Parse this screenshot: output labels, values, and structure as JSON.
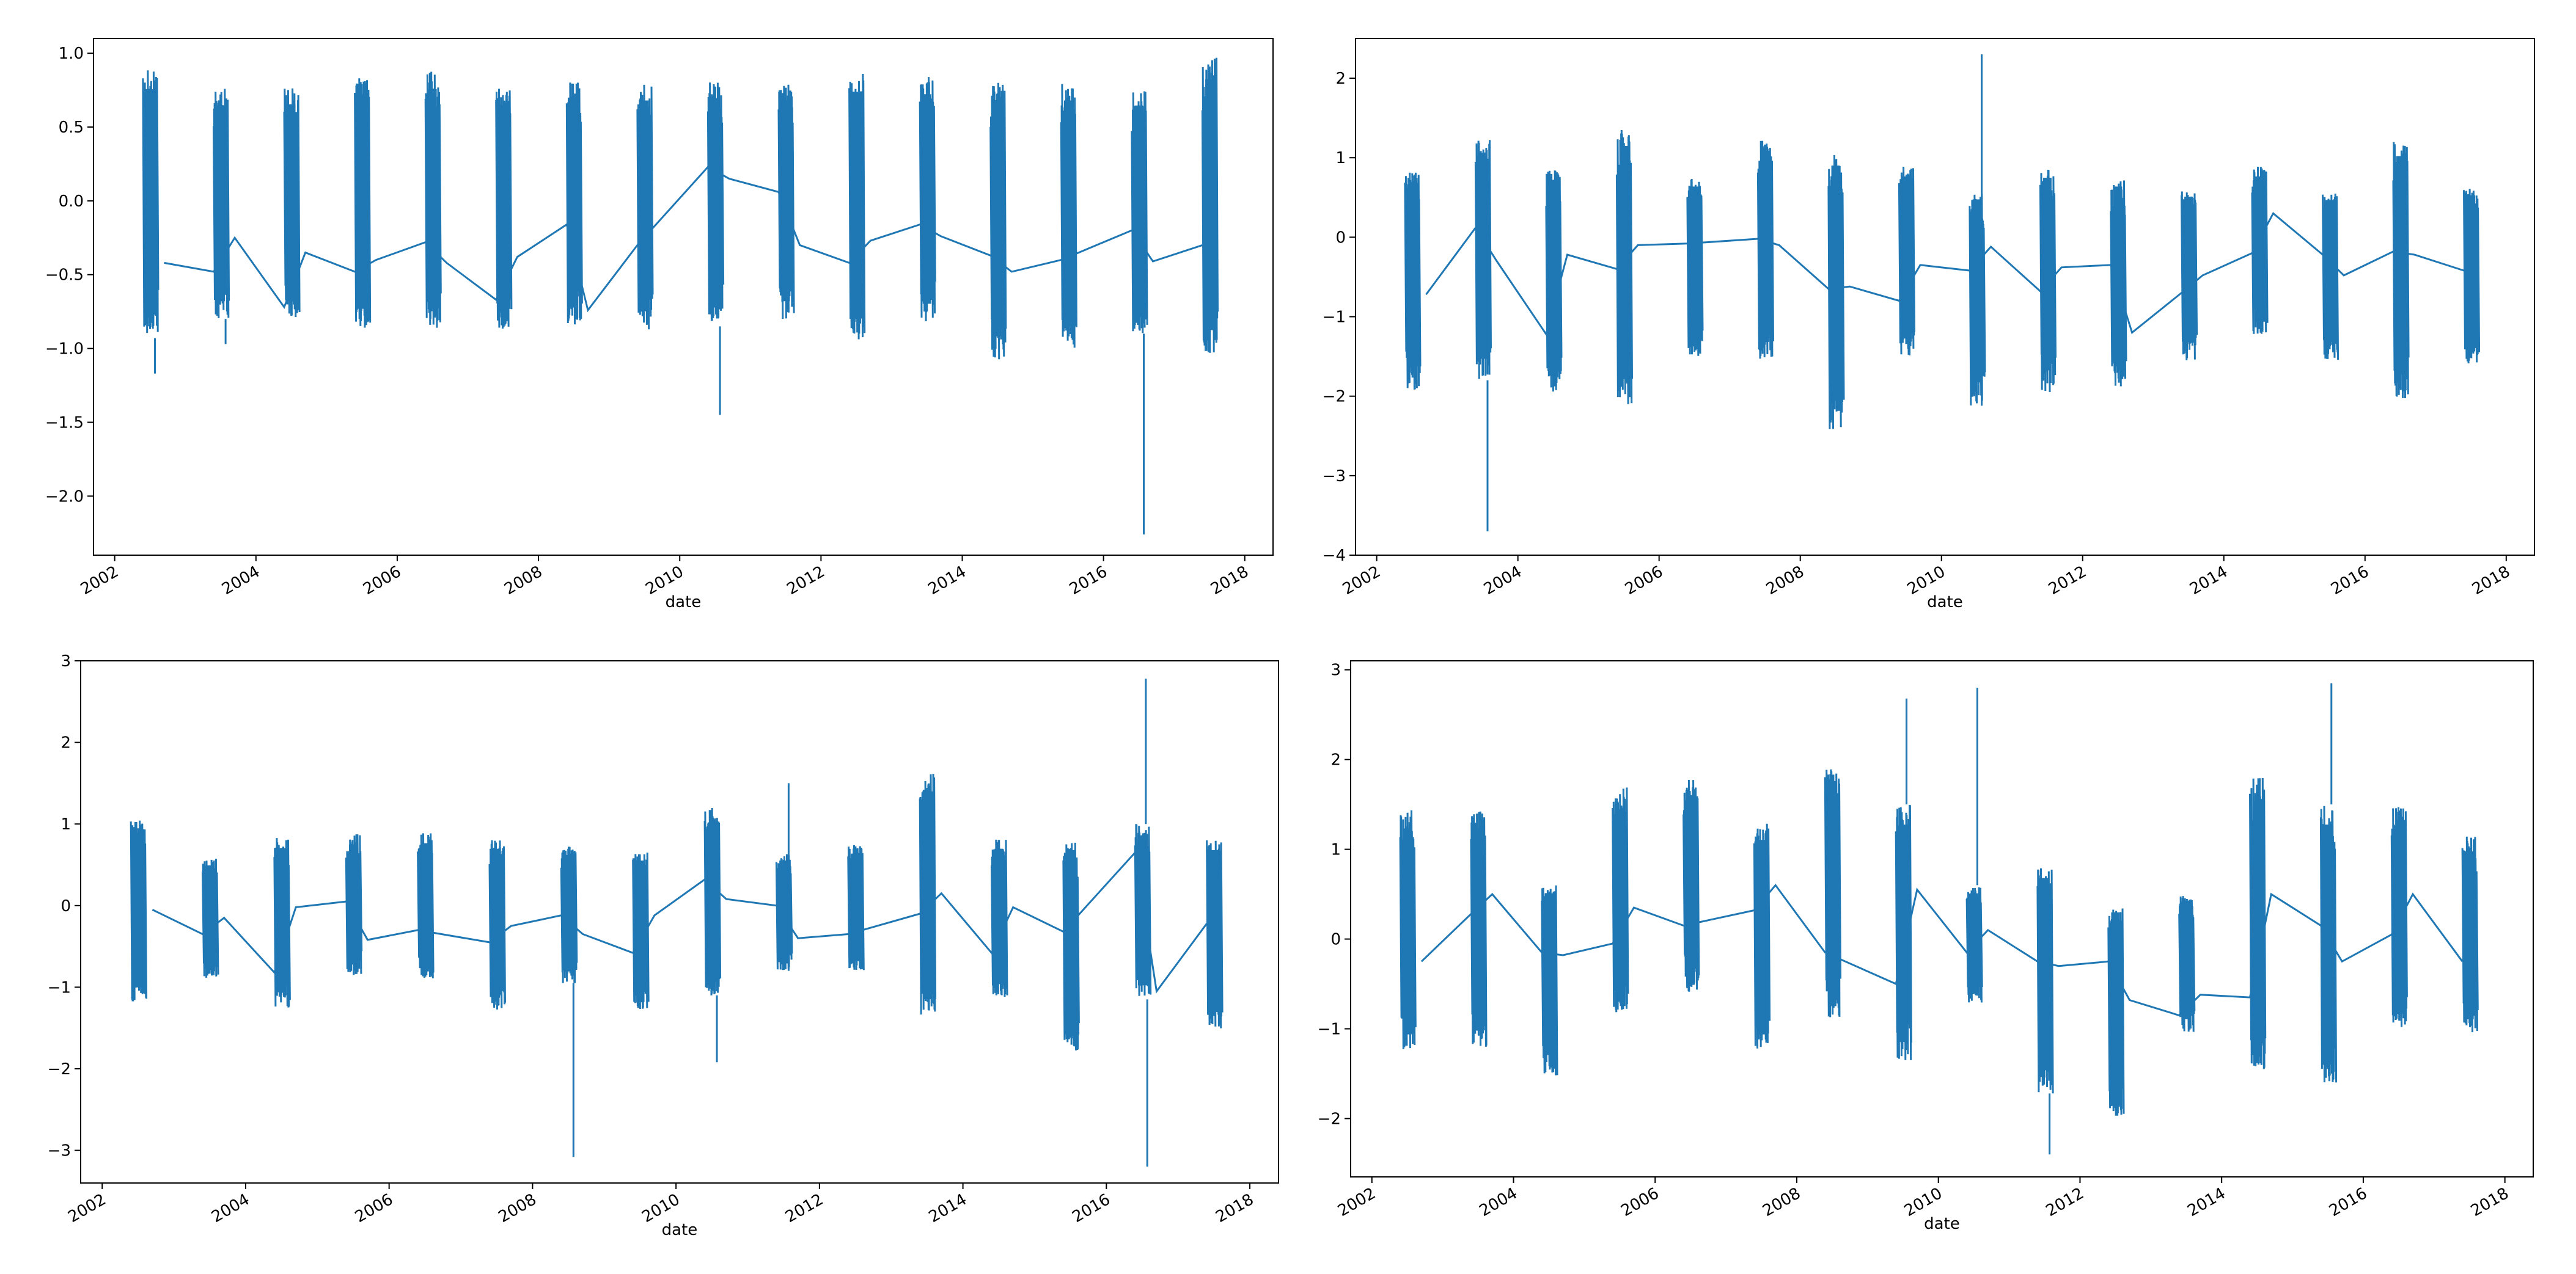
{
  "figure": {
    "line_color": "#1f77b4",
    "background": "#ffffff"
  },
  "chart_data": [
    {
      "type": "line",
      "title": "",
      "xlabel": "date",
      "ylabel": "",
      "grid": false,
      "xlim": [
        2001.7,
        2018.4
      ],
      "ylim": [
        -2.4,
        1.1
      ],
      "x_ticks": [
        2002,
        2004,
        2006,
        2008,
        2010,
        2012,
        2014,
        2016,
        2018
      ],
      "y_ticks": [
        1.0,
        0.5,
        0.0,
        -0.5,
        -1.0,
        -1.5,
        -2.0
      ],
      "y_tick_labels": [
        "1.0",
        "0.5",
        "0.0",
        "−0.5",
        "−1.0",
        "−1.5",
        "−2.0"
      ],
      "bursts": [
        {
          "x": 2002.5,
          "min": -0.93,
          "max": 0.89,
          "spike": -1.17
        },
        {
          "x": 2003.5,
          "min": -0.8,
          "max": 0.76,
          "spike": -0.97
        },
        {
          "x": 2004.5,
          "min": -0.8,
          "max": 0.77
        },
        {
          "x": 2005.5,
          "min": -0.86,
          "max": 0.85
        },
        {
          "x": 2006.5,
          "min": -0.86,
          "max": 0.89
        },
        {
          "x": 2007.5,
          "min": -0.87,
          "max": 0.76
        },
        {
          "x": 2008.5,
          "min": -0.85,
          "max": 0.83
        },
        {
          "x": 2009.5,
          "min": -0.88,
          "max": 0.8
        },
        {
          "x": 2010.5,
          "min": -0.85,
          "max": 0.82,
          "spike": -1.45
        },
        {
          "x": 2011.5,
          "min": -0.8,
          "max": 0.8
        },
        {
          "x": 2012.5,
          "min": -0.94,
          "max": 0.87
        },
        {
          "x": 2013.5,
          "min": -0.82,
          "max": 0.85
        },
        {
          "x": 2014.5,
          "min": -1.08,
          "max": 0.8
        },
        {
          "x": 2015.5,
          "min": -1.0,
          "max": 0.8
        },
        {
          "x": 2016.5,
          "min": -0.9,
          "max": 0.76,
          "spike": -2.26
        },
        {
          "x": 2017.5,
          "min": -1.03,
          "max": 0.97
        }
      ],
      "connectors": [
        [
          2002.7,
          -0.42
        ],
        [
          2003.4,
          -0.48
        ],
        [
          2003.7,
          -0.25
        ],
        [
          2004.4,
          -0.72
        ],
        [
          2004.7,
          -0.35
        ],
        [
          2005.4,
          -0.48
        ],
        [
          2005.7,
          -0.4
        ],
        [
          2006.4,
          -0.28
        ],
        [
          2006.7,
          -0.42
        ],
        [
          2007.4,
          -0.67
        ],
        [
          2007.7,
          -0.38
        ],
        [
          2008.4,
          -0.16
        ],
        [
          2008.7,
          -0.74
        ],
        [
          2009.4,
          -0.3
        ],
        [
          2010.4,
          0.23
        ],
        [
          2010.7,
          0.15
        ],
        [
          2011.4,
          0.06
        ],
        [
          2011.7,
          -0.3
        ],
        [
          2012.4,
          -0.42
        ],
        [
          2012.7,
          -0.27
        ],
        [
          2013.4,
          -0.16
        ],
        [
          2013.7,
          -0.24
        ],
        [
          2014.4,
          -0.37
        ],
        [
          2014.7,
          -0.48
        ],
        [
          2015.4,
          -0.4
        ],
        [
          2016.4,
          -0.2
        ],
        [
          2016.7,
          -0.41
        ],
        [
          2017.4,
          -0.3
        ]
      ]
    },
    {
      "type": "line",
      "title": "",
      "xlabel": "date",
      "ylabel": "",
      "grid": false,
      "xlim": [
        2001.7,
        2018.4
      ],
      "ylim": [
        -4.0,
        2.5
      ],
      "x_ticks": [
        2002,
        2004,
        2006,
        2008,
        2010,
        2012,
        2014,
        2016,
        2018
      ],
      "y_ticks": [
        2,
        1,
        0,
        -1,
        -2,
        -3,
        -4
      ],
      "y_tick_labels": [
        "2",
        "1",
        "0",
        "−1",
        "−2",
        "−3",
        "−4"
      ],
      "bursts": [
        {
          "x": 2002.5,
          "min": -1.93,
          "max": 0.82
        },
        {
          "x": 2003.5,
          "min": -1.8,
          "max": 1.25,
          "spike": -3.7
        },
        {
          "x": 2004.5,
          "min": -1.98,
          "max": 0.85
        },
        {
          "x": 2005.5,
          "min": -2.1,
          "max": 1.35
        },
        {
          "x": 2006.5,
          "min": -1.5,
          "max": 0.75
        },
        {
          "x": 2007.5,
          "min": -1.55,
          "max": 1.22
        },
        {
          "x": 2008.5,
          "min": -2.42,
          "max": 1.06
        },
        {
          "x": 2009.5,
          "min": -1.5,
          "max": 0.9
        },
        {
          "x": 2010.5,
          "min": -2.12,
          "max": 0.56,
          "spike": 2.3
        },
        {
          "x": 2011.5,
          "min": -1.97,
          "max": 0.88
        },
        {
          "x": 2012.5,
          "min": -1.88,
          "max": 0.75
        },
        {
          "x": 2013.5,
          "min": -1.55,
          "max": 0.6
        },
        {
          "x": 2014.5,
          "min": -1.22,
          "max": 0.9
        },
        {
          "x": 2015.5,
          "min": -1.55,
          "max": 0.55
        },
        {
          "x": 2016.5,
          "min": -2.03,
          "max": 1.2
        },
        {
          "x": 2017.5,
          "min": -1.6,
          "max": 0.62
        }
      ],
      "connectors": [
        [
          2002.7,
          -0.72
        ],
        [
          2003.4,
          0.12
        ],
        [
          2003.7,
          -0.3
        ],
        [
          2004.4,
          -1.22
        ],
        [
          2004.7,
          -0.22
        ],
        [
          2005.4,
          -0.4
        ],
        [
          2005.7,
          -0.1
        ],
        [
          2006.4,
          -0.08
        ],
        [
          2007.4,
          -0.02
        ],
        [
          2007.7,
          -0.1
        ],
        [
          2008.4,
          -0.65
        ],
        [
          2008.7,
          -0.62
        ],
        [
          2009.4,
          -0.8
        ],
        [
          2009.7,
          -0.35
        ],
        [
          2010.4,
          -0.42
        ],
        [
          2010.7,
          -0.12
        ],
        [
          2011.4,
          -0.68
        ],
        [
          2011.7,
          -0.38
        ],
        [
          2012.4,
          -0.35
        ],
        [
          2012.7,
          -1.2
        ],
        [
          2013.4,
          -0.7
        ],
        [
          2013.7,
          -0.48
        ],
        [
          2014.4,
          -0.2
        ],
        [
          2014.7,
          0.3
        ],
        [
          2015.4,
          -0.22
        ],
        [
          2015.7,
          -0.48
        ],
        [
          2016.4,
          -0.18
        ],
        [
          2016.7,
          -0.22
        ],
        [
          2017.4,
          -0.42
        ]
      ]
    },
    {
      "type": "line",
      "title": "",
      "xlabel": "date",
      "ylabel": "",
      "grid": false,
      "xlim": [
        2001.7,
        2018.4
      ],
      "ylim": [
        -3.4,
        3.0
      ],
      "x_ticks": [
        2002,
        2004,
        2006,
        2008,
        2010,
        2012,
        2014,
        2016,
        2018
      ],
      "y_ticks": [
        3,
        2,
        1,
        0,
        -1,
        -2,
        -3
      ],
      "y_tick_labels": [
        "3",
        "2",
        "1",
        "0",
        "−1",
        "−2",
        "−3"
      ],
      "bursts": [
        {
          "x": 2002.5,
          "min": -1.18,
          "max": 1.05
        },
        {
          "x": 2003.5,
          "min": -0.93,
          "max": 0.58
        },
        {
          "x": 2004.5,
          "min": -1.25,
          "max": 0.83
        },
        {
          "x": 2005.5,
          "min": -0.85,
          "max": 0.88
        },
        {
          "x": 2006.5,
          "min": -0.9,
          "max": 0.9
        },
        {
          "x": 2007.5,
          "min": -1.28,
          "max": 0.82
        },
        {
          "x": 2008.5,
          "min": -0.95,
          "max": 0.73,
          "spike": -3.08
        },
        {
          "x": 2009.5,
          "min": -1.3,
          "max": 0.65
        },
        {
          "x": 2010.5,
          "min": -1.1,
          "max": 1.2,
          "spike": -1.92
        },
        {
          "x": 2011.5,
          "min": -0.8,
          "max": 0.65,
          "spike": 1.5
        },
        {
          "x": 2012.5,
          "min": -0.8,
          "max": 0.75
        },
        {
          "x": 2013.5,
          "min": -1.35,
          "max": 1.67
        },
        {
          "x": 2014.5,
          "min": -1.12,
          "max": 0.82
        },
        {
          "x": 2015.5,
          "min": -1.8,
          "max": 0.8
        },
        {
          "x": 2016.5,
          "min": -1.15,
          "max": 1.0,
          "spike_hi": 2.78,
          "spike": -3.2
        },
        {
          "x": 2017.5,
          "min": -1.53,
          "max": 0.8
        }
      ],
      "connectors": [
        [
          2002.7,
          -0.05
        ],
        [
          2003.4,
          -0.35
        ],
        [
          2003.7,
          -0.15
        ],
        [
          2004.4,
          -0.82
        ],
        [
          2004.7,
          -0.02
        ],
        [
          2005.4,
          0.05
        ],
        [
          2005.7,
          -0.42
        ],
        [
          2006.4,
          -0.3
        ],
        [
          2007.4,
          -0.45
        ],
        [
          2007.7,
          -0.25
        ],
        [
          2008.4,
          -0.12
        ],
        [
          2008.7,
          -0.35
        ],
        [
          2009.4,
          -0.58
        ],
        [
          2009.7,
          -0.12
        ],
        [
          2010.4,
          0.32
        ],
        [
          2010.7,
          0.08
        ],
        [
          2011.4,
          0.0
        ],
        [
          2011.7,
          -0.4
        ],
        [
          2012.4,
          -0.35
        ],
        [
          2013.4,
          -0.1
        ],
        [
          2013.7,
          0.15
        ],
        [
          2014.4,
          -0.58
        ],
        [
          2014.7,
          -0.02
        ],
        [
          2015.4,
          -0.32
        ],
        [
          2016.4,
          0.65
        ],
        [
          2016.7,
          -1.05
        ],
        [
          2017.4,
          -0.22
        ]
      ]
    },
    {
      "type": "line",
      "title": "",
      "xlabel": "date",
      "ylabel": "",
      "grid": false,
      "xlim": [
        2001.7,
        2018.4
      ],
      "ylim": [
        -2.65,
        3.1
      ],
      "x_ticks": [
        2002,
        2004,
        2006,
        2008,
        2010,
        2012,
        2014,
        2016,
        2018
      ],
      "y_ticks": [
        3,
        2,
        1,
        0,
        -1,
        -2
      ],
      "y_tick_labels": [
        "3",
        "2",
        "1",
        "0",
        "−1",
        "−2"
      ],
      "bursts": [
        {
          "x": 2002.5,
          "min": -1.25,
          "max": 1.45
        },
        {
          "x": 2003.5,
          "min": -1.2,
          "max": 1.45
        },
        {
          "x": 2004.5,
          "min": -1.52,
          "max": 0.6
        },
        {
          "x": 2005.5,
          "min": -0.82,
          "max": 1.7
        },
        {
          "x": 2006.5,
          "min": -0.6,
          "max": 1.78
        },
        {
          "x": 2007.5,
          "min": -1.25,
          "max": 1.3
        },
        {
          "x": 2008.5,
          "min": -0.88,
          "max": 1.9
        },
        {
          "x": 2009.5,
          "min": -1.35,
          "max": 1.5,
          "spike_hi": 2.68
        },
        {
          "x": 2010.5,
          "min": -0.72,
          "max": 0.6,
          "spike_hi": 2.8
        },
        {
          "x": 2011.5,
          "min": -1.72,
          "max": 0.8,
          "spike": -2.4
        },
        {
          "x": 2012.5,
          "min": -2.0,
          "max": 0.35
        },
        {
          "x": 2013.5,
          "min": -1.05,
          "max": 0.5
        },
        {
          "x": 2014.5,
          "min": -1.5,
          "max": 1.8
        },
        {
          "x": 2015.5,
          "min": -1.6,
          "max": 1.5,
          "spike_hi": 2.85
        },
        {
          "x": 2016.5,
          "min": -0.98,
          "max": 1.48
        },
        {
          "x": 2017.5,
          "min": -1.05,
          "max": 1.15
        }
      ],
      "connectors": [
        [
          2002.7,
          -0.25
        ],
        [
          2003.4,
          0.28
        ],
        [
          2003.7,
          0.5
        ],
        [
          2004.4,
          -0.15
        ],
        [
          2004.7,
          -0.18
        ],
        [
          2005.4,
          -0.05
        ],
        [
          2005.7,
          0.35
        ],
        [
          2006.4,
          0.15
        ],
        [
          2007.4,
          0.32
        ],
        [
          2007.7,
          0.6
        ],
        [
          2008.4,
          -0.15
        ],
        [
          2009.4,
          -0.5
        ],
        [
          2009.7,
          0.55
        ],
        [
          2010.4,
          -0.15
        ],
        [
          2010.7,
          0.1
        ],
        [
          2011.4,
          -0.25
        ],
        [
          2011.7,
          -0.3
        ],
        [
          2012.4,
          -0.25
        ],
        [
          2012.7,
          -0.68
        ],
        [
          2013.4,
          -0.85
        ],
        [
          2013.7,
          -0.62
        ],
        [
          2014.4,
          -0.65
        ],
        [
          2014.7,
          0.5
        ],
        [
          2015.4,
          0.15
        ],
        [
          2015.7,
          -0.25
        ],
        [
          2016.4,
          0.05
        ],
        [
          2016.7,
          0.5
        ],
        [
          2017.4,
          -0.25
        ]
      ]
    }
  ]
}
